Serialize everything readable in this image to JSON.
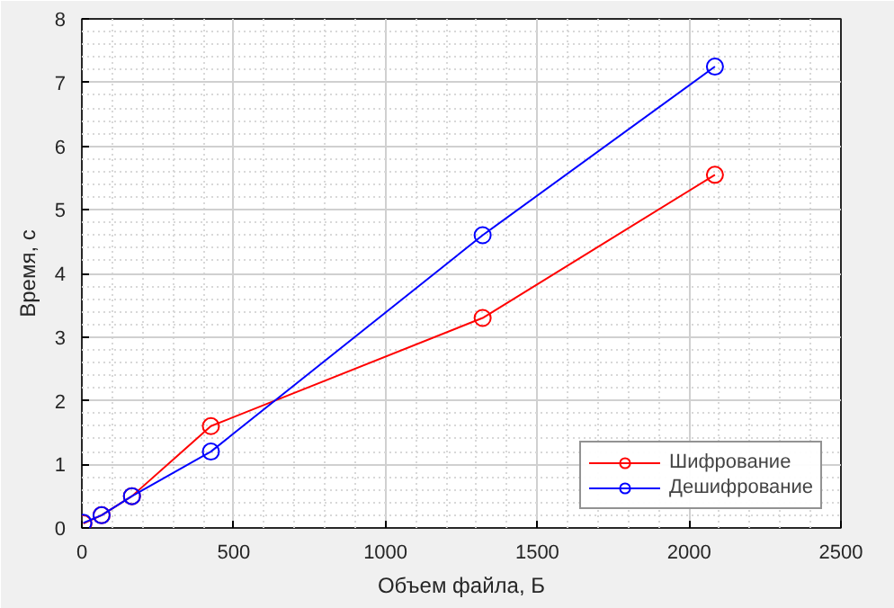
{
  "chart_data": {
    "type": "line",
    "xlabel": "Объем файла, Б",
    "ylabel": "Время, с",
    "x": [
      5,
      65,
      165,
      425,
      1320,
      2085
    ],
    "series": [
      {
        "name": "Шифрование",
        "color": "#ff0000",
        "values": [
          0.07,
          0.2,
          0.5,
          1.6,
          3.3,
          5.55
        ]
      },
      {
        "name": "Дешифрование",
        "color": "#0000ff",
        "values": [
          0.08,
          0.2,
          0.5,
          1.2,
          4.6,
          7.25
        ]
      }
    ],
    "xlim": [
      0,
      2500
    ],
    "ylim": [
      0,
      8
    ],
    "xticks": [
      0,
      500,
      1000,
      1500,
      2000,
      2500
    ],
    "yticks": [
      0,
      1,
      2,
      3,
      4,
      5,
      6,
      7,
      8
    ],
    "grid": true,
    "legend": "bottom right",
    "marker": "circle",
    "line_style": "solid"
  }
}
